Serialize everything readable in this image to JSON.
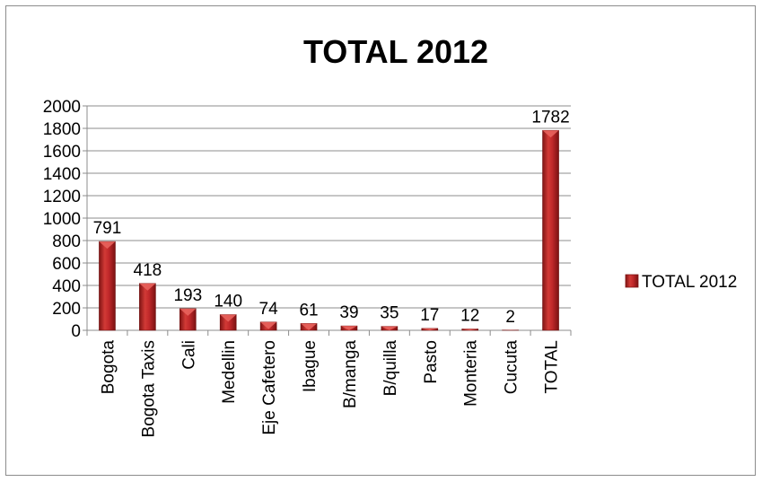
{
  "chart_data": {
    "type": "bar",
    "title": "TOTAL 2012",
    "categories": [
      "Bogota",
      "Bogota Taxis",
      "Cali",
      "Medellin",
      "Eje Cafetero",
      "Ibague",
      "B/manga",
      "B/quilla",
      "Pasto",
      "Monteria",
      "Cucuta",
      "TOTAL"
    ],
    "series": [
      {
        "name": "TOTAL 2012",
        "values": [
          791,
          418,
          193,
          140,
          74,
          61,
          39,
          35,
          17,
          12,
          2,
          1782
        ]
      }
    ],
    "ylim": [
      0,
      2000
    ],
    "yticks": [
      0,
      200,
      400,
      600,
      800,
      1000,
      1200,
      1400,
      1600,
      1800,
      2000
    ],
    "xlabel": "",
    "ylabel": "",
    "grid": true,
    "legend_position": "right",
    "colors": {
      "bar": "#c0282a",
      "bar_dark": "#7f1414",
      "bar_light": "#e0605a"
    }
  }
}
